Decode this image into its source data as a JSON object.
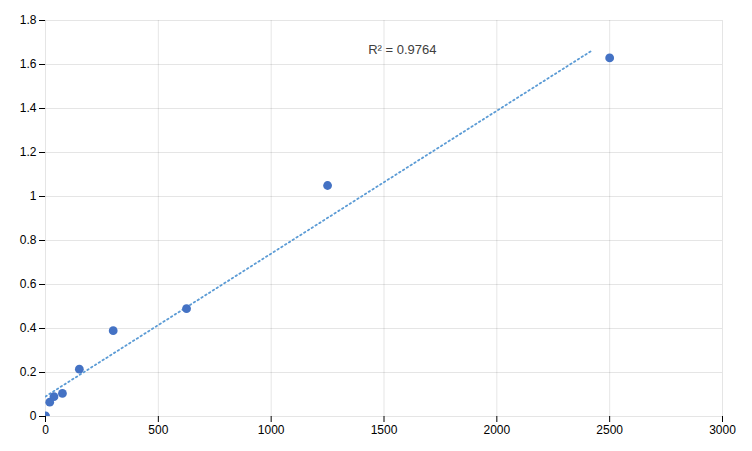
{
  "chart_data": {
    "type": "scatter",
    "series": [
      {
        "type": "line",
        "x": [
          0,
          2420
        ],
        "values": [
          0.09112,
          1.66235
        ],
        "color": "#5B9BD5",
        "line_style": "dotted"
      },
      {
        "type": "scatter",
        "x": [
          0,
          18.75,
          37.5,
          75,
          150,
          300,
          625,
          1250,
          2500
        ],
        "values": [
          0.003,
          0.065,
          0.09,
          0.105,
          0.215,
          0.39,
          0.49,
          1.05,
          1.63
        ],
        "color": "#4472C4",
        "marker": "circle"
      }
    ],
    "annotations": [
      {
        "text": "R² = 0.9764",
        "x": 1430,
        "y": 1.69
      }
    ],
    "xlim": [
      0,
      3000
    ],
    "ylim": [
      0,
      1.8
    ],
    "xticks": [
      0,
      500,
      1000,
      1500,
      2000,
      2500,
      3000
    ],
    "yticks": [
      0,
      0.2,
      0.4,
      0.6,
      0.8,
      1,
      1.2,
      1.4,
      1.6,
      1.8
    ],
    "grid": true
  }
}
